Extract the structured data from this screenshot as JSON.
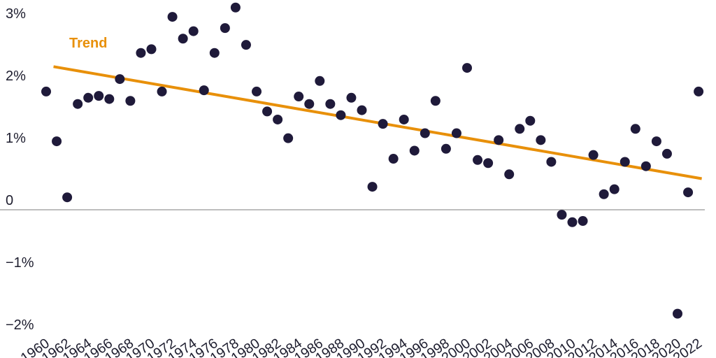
{
  "chart_data": {
    "type": "scatter",
    "title": "",
    "xlabel": "",
    "ylabel": "",
    "xlim": [
      1960,
      2022
    ],
    "ylim": [
      -2,
      3
    ],
    "yticks": [
      {
        "value": 3,
        "label": "3%"
      },
      {
        "value": 2,
        "label": "2%"
      },
      {
        "value": 1,
        "label": "1%"
      },
      {
        "value": 0,
        "label": "0"
      },
      {
        "value": -1,
        "label": "−1%"
      },
      {
        "value": -2,
        "label": "−2%"
      }
    ],
    "xticks": [
      "1960",
      "1962",
      "1964",
      "1966",
      "1968",
      "1970",
      "1972",
      "1974",
      "1976",
      "1978",
      "1980",
      "1982",
      "1984",
      "1986",
      "1988",
      "1990",
      "1992",
      "1994",
      "1996",
      "1998",
      "2000",
      "2002",
      "2004",
      "2006",
      "2008",
      "2010",
      "2012",
      "2014",
      "2016",
      "2018",
      "2020",
      "2022"
    ],
    "grid": false,
    "series": [
      {
        "color": "#1f1a3a",
        "points": [
          [
            1960,
            1.9
          ],
          [
            1961,
            1.1
          ],
          [
            1962,
            0.2
          ],
          [
            1963,
            1.7
          ],
          [
            1964,
            1.8
          ],
          [
            1965,
            1.83
          ],
          [
            1966,
            1.78
          ],
          [
            1967,
            2.1
          ],
          [
            1968,
            1.75
          ],
          [
            1969,
            2.52
          ],
          [
            1970,
            2.58
          ],
          [
            1971,
            1.9
          ],
          [
            1972,
            3.1
          ],
          [
            1973,
            2.75
          ],
          [
            1974,
            2.87
          ],
          [
            1975,
            1.92
          ],
          [
            1976,
            2.52
          ],
          [
            1977,
            2.92
          ],
          [
            1978,
            3.25
          ],
          [
            1979,
            2.65
          ],
          [
            1980,
            1.9
          ],
          [
            1981,
            1.58
          ],
          [
            1982,
            1.45
          ],
          [
            1983,
            1.15
          ],
          [
            1984,
            1.82
          ],
          [
            1985,
            1.7
          ],
          [
            1986,
            2.07
          ],
          [
            1987,
            1.7
          ],
          [
            1988,
            1.52
          ],
          [
            1989,
            1.8
          ],
          [
            1990,
            1.6
          ],
          [
            1991,
            0.37
          ],
          [
            1992,
            1.38
          ],
          [
            1993,
            0.82
          ],
          [
            1994,
            1.45
          ],
          [
            1995,
            0.95
          ],
          [
            1996,
            1.23
          ],
          [
            1997,
            1.75
          ],
          [
            1998,
            0.98
          ],
          [
            1999,
            1.23
          ],
          [
            2000,
            2.28
          ],
          [
            2001,
            0.8
          ],
          [
            2002,
            0.75
          ],
          [
            2003,
            1.12
          ],
          [
            2004,
            0.57
          ],
          [
            2005,
            1.3
          ],
          [
            2006,
            1.43
          ],
          [
            2007,
            1.12
          ],
          [
            2008,
            0.77
          ],
          [
            2009,
            -0.08
          ],
          [
            2010,
            -0.2
          ],
          [
            2011,
            -0.18
          ],
          [
            2012,
            0.88
          ],
          [
            2013,
            0.25
          ],
          [
            2014,
            0.33
          ],
          [
            2015,
            0.77
          ],
          [
            2016,
            1.3
          ],
          [
            2017,
            0.7
          ],
          [
            2018,
            1.1
          ],
          [
            2019,
            0.9
          ],
          [
            2020,
            -1.67
          ],
          [
            2021,
            0.28
          ],
          [
            2022,
            1.9
          ]
        ]
      }
    ],
    "trend": {
      "label": "Trend",
      "color": "#e8900a",
      "start": [
        1960.7,
        2.3
      ],
      "end": [
        2022.3,
        0.5
      ]
    }
  }
}
